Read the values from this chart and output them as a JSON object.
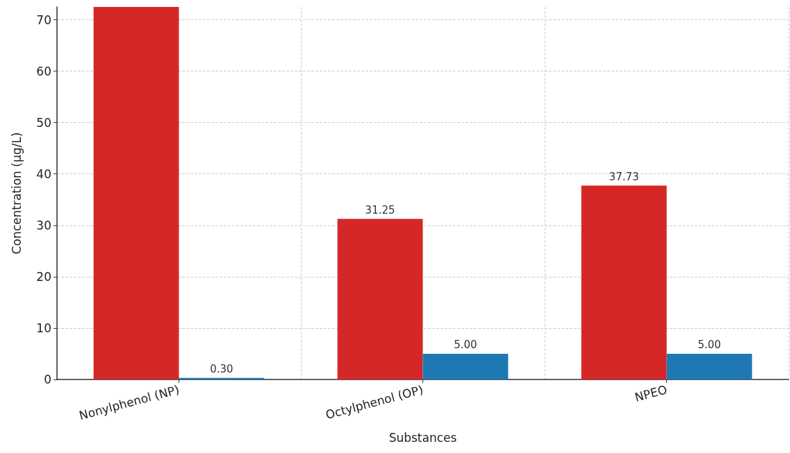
{
  "chart_data": {
    "type": "bar",
    "xlabel": "Substances",
    "ylabel": "Concentration (µg/L)",
    "categories": [
      "Nonylphenol (NP)",
      "Octylphenol (OP)",
      "NPEO"
    ],
    "series": [
      {
        "color": "#d62728",
        "values": [
          72.5,
          31.25,
          37.73
        ],
        "value_labels": [
          null,
          "31.25",
          "37.73"
        ]
      },
      {
        "color": "#1f77b4",
        "values": [
          0.3,
          5,
          5
        ],
        "value_labels": [
          "0.30",
          "5.00",
          "5.00"
        ]
      }
    ],
    "ylim": [
      0,
      72.5
    ],
    "yticks": [
      0,
      10,
      20,
      30,
      40,
      50,
      60,
      70
    ],
    "grid": true
  }
}
